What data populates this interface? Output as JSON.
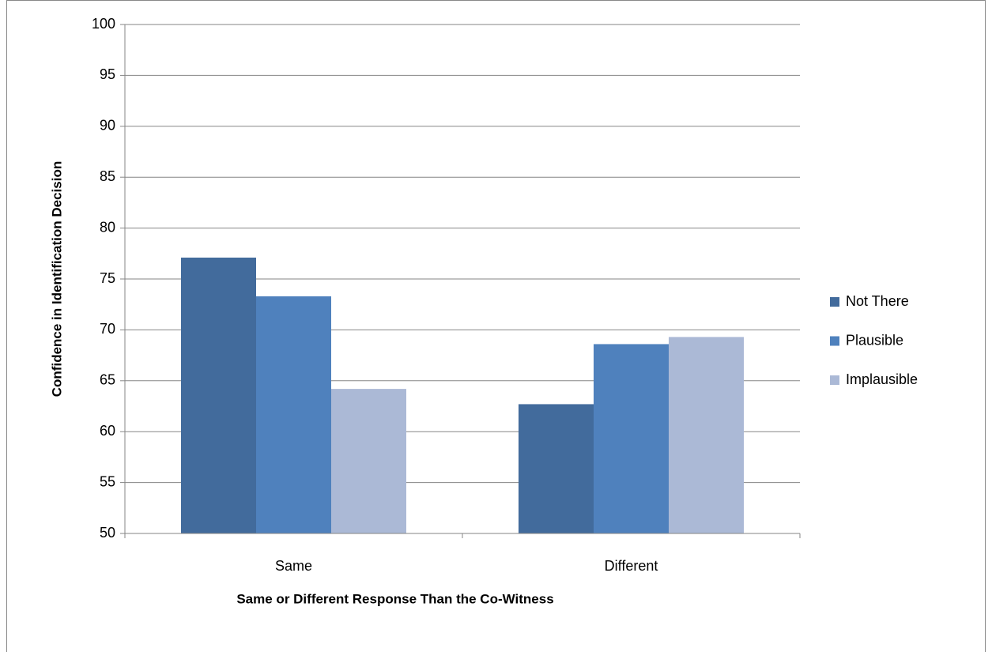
{
  "chart_data": {
    "type": "bar",
    "x_label": "Same or Different Response Than the Co-Witness",
    "y_label": "Confidence in Identification Decision",
    "categories": [
      "Same",
      "Different"
    ],
    "series": [
      {
        "name": "Not There",
        "color": "#426b9c",
        "values": [
          77.1,
          62.7
        ]
      },
      {
        "name": "Plausible",
        "color": "#4f81bd",
        "values": [
          73.3,
          68.6
        ]
      },
      {
        "name": "Implausible",
        "color": "#abb9d6",
        "values": [
          64.2,
          69.3
        ]
      }
    ],
    "ylim": [
      50,
      100
    ],
    "yticks": [
      50,
      55,
      60,
      65,
      70,
      75,
      80,
      85,
      90,
      95,
      100
    ],
    "grid": true,
    "legend": "right"
  }
}
